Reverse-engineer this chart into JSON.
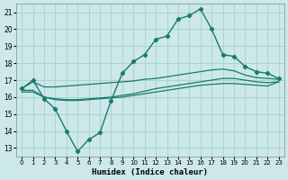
{
  "xlabel": "Humidex (Indice chaleur)",
  "background_color": "#cce8e8",
  "grid_color": "#aad4d4",
  "line_color": "#1a7a6e",
  "xlim": [
    -0.5,
    23.5
  ],
  "ylim": [
    12.5,
    21.5
  ],
  "xticks": [
    0,
    1,
    2,
    3,
    4,
    5,
    6,
    7,
    8,
    9,
    10,
    11,
    12,
    13,
    14,
    15,
    16,
    17,
    18,
    19,
    20,
    21,
    22,
    23
  ],
  "yticks": [
    13,
    14,
    15,
    16,
    17,
    18,
    19,
    20,
    21
  ],
  "line1_x": [
    0,
    1,
    2,
    3,
    4,
    5,
    6,
    7,
    8,
    9,
    10,
    11,
    12,
    13,
    14,
    15,
    16,
    17,
    18,
    19,
    20,
    21,
    22,
    23
  ],
  "line1_y": [
    16.5,
    17.0,
    15.9,
    15.3,
    14.0,
    12.8,
    13.5,
    13.9,
    15.8,
    17.4,
    18.1,
    18.5,
    19.4,
    19.6,
    20.6,
    20.8,
    21.2,
    20.0,
    18.5,
    18.4,
    17.8,
    17.5,
    17.4,
    17.1
  ],
  "line2_x": [
    0,
    1,
    2,
    3,
    4,
    5,
    6,
    7,
    8,
    9,
    10,
    11,
    12,
    13,
    14,
    15,
    16,
    17,
    18,
    19,
    20,
    21,
    22,
    23
  ],
  "line2_y": [
    16.5,
    16.9,
    16.6,
    16.6,
    16.65,
    16.7,
    16.75,
    16.8,
    16.85,
    16.9,
    16.95,
    17.05,
    17.1,
    17.2,
    17.3,
    17.4,
    17.5,
    17.6,
    17.65,
    17.55,
    17.3,
    17.15,
    17.1,
    17.05
  ],
  "line3_x": [
    0,
    1,
    2,
    3,
    4,
    5,
    6,
    7,
    8,
    9,
    10,
    11,
    12,
    13,
    14,
    15,
    16,
    17,
    18,
    19,
    20,
    21,
    22,
    23
  ],
  "line3_y": [
    16.4,
    16.4,
    16.0,
    15.9,
    15.85,
    15.85,
    15.9,
    15.95,
    16.0,
    16.1,
    16.2,
    16.35,
    16.5,
    16.6,
    16.7,
    16.8,
    16.9,
    17.0,
    17.1,
    17.1,
    17.0,
    16.9,
    16.85,
    16.9
  ],
  "line4_x": [
    0,
    1,
    2,
    3,
    4,
    5,
    6,
    7,
    8,
    9,
    10,
    11,
    12,
    13,
    14,
    15,
    16,
    17,
    18,
    19,
    20,
    21,
    22,
    23
  ],
  "line4_y": [
    16.3,
    16.3,
    16.0,
    15.85,
    15.8,
    15.8,
    15.85,
    15.9,
    15.95,
    16.0,
    16.1,
    16.2,
    16.3,
    16.4,
    16.5,
    16.6,
    16.7,
    16.75,
    16.8,
    16.8,
    16.75,
    16.7,
    16.65,
    16.9
  ]
}
